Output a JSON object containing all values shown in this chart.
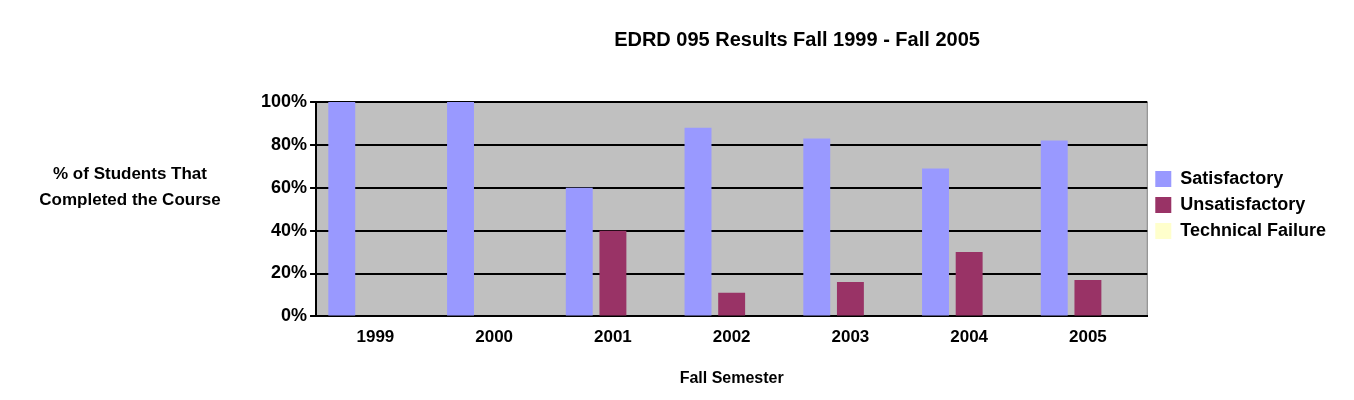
{
  "chart_data": {
    "type": "bar",
    "title": "EDRD 095 Results Fall 1999 - Fall 2005",
    "xlabel": "Fall Semester",
    "ylabel": "% of Students That Completed the Course",
    "categories": [
      "1999",
      "2000",
      "2001",
      "2002",
      "2003",
      "2004",
      "2005"
    ],
    "series": [
      {
        "name": "Satisfactory",
        "color": "#9999ff",
        "values": [
          100,
          100,
          60,
          88,
          83,
          69,
          82
        ]
      },
      {
        "name": "Unsatisfactory",
        "color": "#993366",
        "values": [
          0,
          0,
          40,
          11,
          16,
          30,
          17
        ]
      },
      {
        "name": "Technical Failure",
        "color": "#ffffcc",
        "values": [
          0,
          0,
          0,
          0,
          0,
          0,
          0
        ]
      }
    ],
    "ylim": [
      0,
      100
    ],
    "yticks": [
      {
        "value": 0,
        "label": "0%"
      },
      {
        "value": 20,
        "label": "20%"
      },
      {
        "value": 40,
        "label": "40%"
      },
      {
        "value": 60,
        "label": "60%"
      },
      {
        "value": 80,
        "label": "80%"
      },
      {
        "value": 100,
        "label": "100%"
      }
    ],
    "grid": "y",
    "legend": "right"
  }
}
